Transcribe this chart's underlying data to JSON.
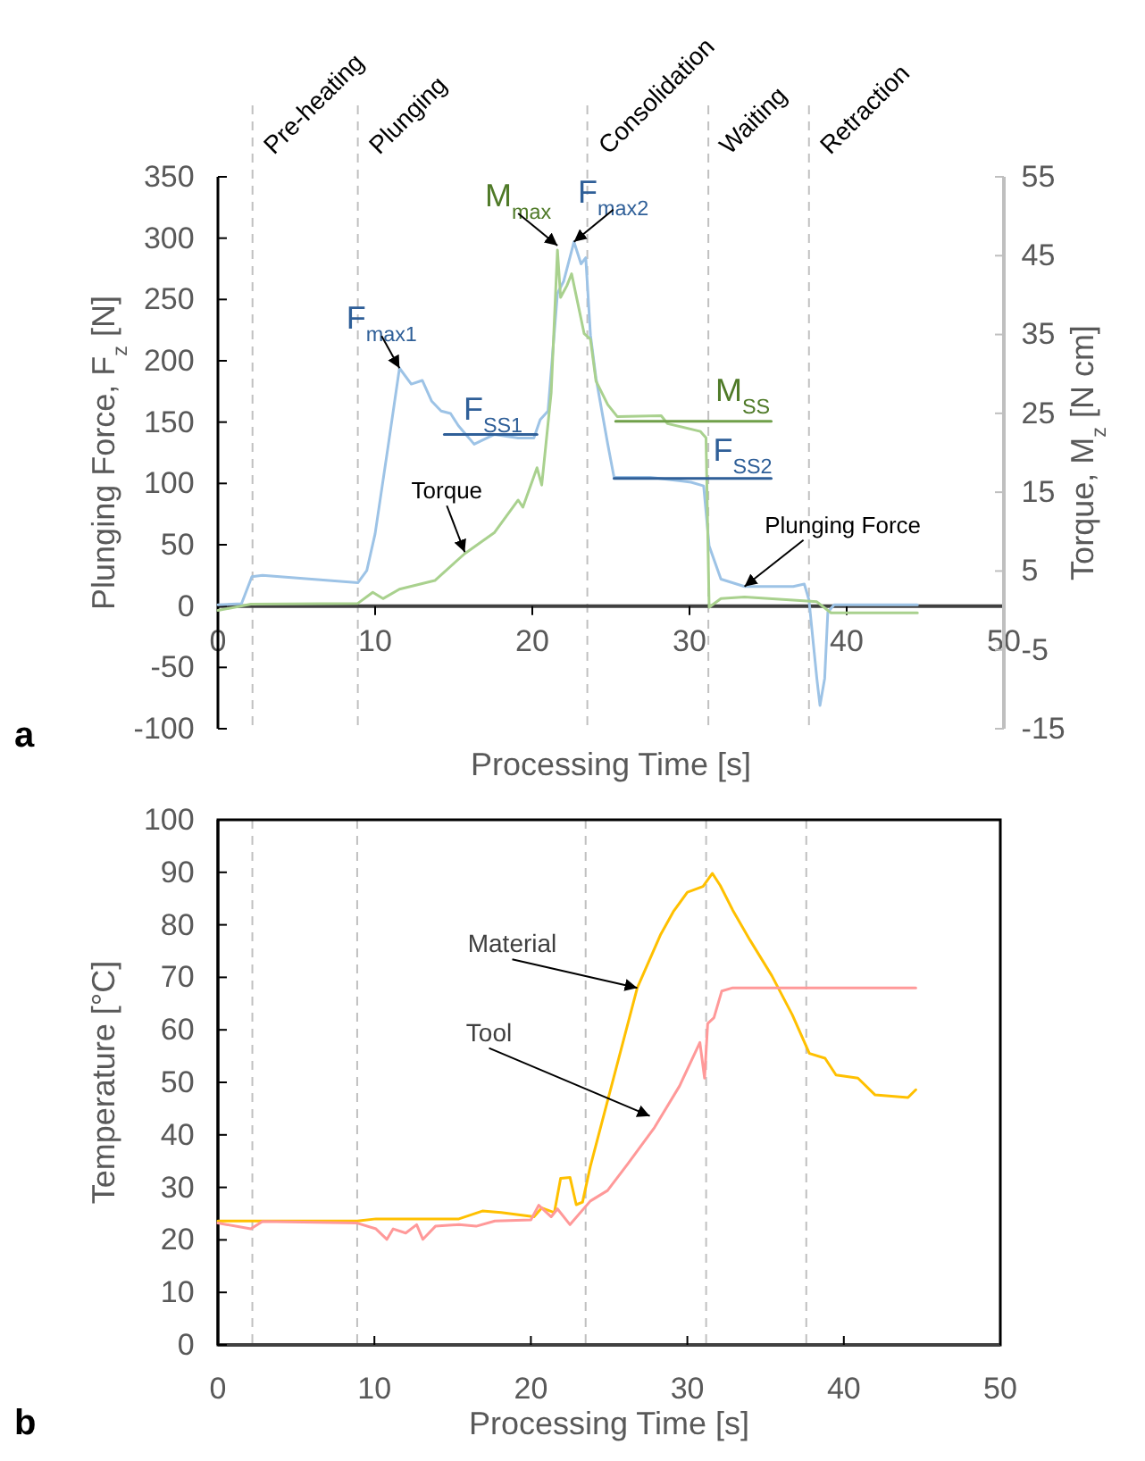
{
  "chart_data": [
    {
      "type": "line",
      "xlabel": "Processing Time [s]",
      "ylabel": "Plunging Force, F$_{z}$ [N]",
      "y2label": "Torque, M$_{z}$ [N cm]",
      "xlim": [
        0,
        50
      ],
      "xticks": [
        0,
        10,
        20,
        30,
        40,
        50
      ],
      "ylim": [
        -100,
        350
      ],
      "yticks": [
        -100,
        -50,
        0,
        50,
        100,
        150,
        200,
        250,
        300,
        350
      ],
      "y2lim": [
        -15,
        55
      ],
      "y2ticks": [
        -15,
        -5,
        5,
        15,
        25,
        35,
        45,
        55
      ],
      "grid": false,
      "marker": "none",
      "line_style": "solid",
      "series": [
        {
          "color": "#9dc3e6",
          "x": [
            0,
            1.5,
            2.16,
            2.84,
            8.9,
            9.47,
            10,
            10.8,
            11.55,
            12.3,
            13,
            13.6,
            14.2,
            14.8,
            15.3,
            16.3,
            17.6,
            19.1,
            20.1,
            20.5,
            21,
            21.6,
            22,
            22.65,
            23.1,
            23.4,
            23.7,
            24.05,
            24.8,
            25.2,
            27.5,
            30.1,
            30.9,
            31.25,
            32,
            33.5,
            36.6,
            37.3,
            37.6,
            38.1,
            38.3,
            38.6,
            38.8,
            39.2,
            44.5
          ],
          "values": [
            1,
            2,
            24,
            25,
            19,
            29,
            59,
            128,
            194,
            181,
            184,
            167,
            159,
            157,
            147,
            132,
            140,
            137,
            137,
            152,
            159,
            255,
            265,
            297,
            279,
            284,
            221,
            186,
            132,
            105,
            105,
            101,
            98,
            49,
            22,
            16,
            16,
            18,
            5,
            -59,
            -81,
            -59,
            -5,
            1,
            1
          ]
        },
        {
          "color": "#a9d18e",
          "axis": "y2",
          "x": [
            0,
            2.1,
            8.9,
            9.85,
            10.5,
            11.55,
            13.8,
            15.7,
            17.6,
            19.1,
            19.4,
            20.3,
            20.6,
            21.2,
            21.6,
            21.8,
            22.2,
            22.5,
            22.9,
            23.3,
            23.7,
            24.05,
            24.8,
            25.4,
            28.2,
            28.6,
            30.7,
            31.05,
            31.25,
            32,
            33.5,
            36.6,
            38.1,
            39,
            44.5
          ],
          "values": [
            0,
            0.8,
            0.9,
            2.3,
            1.5,
            2.7,
            3.8,
            7.2,
            9.9,
            14,
            13.1,
            18.1,
            15.9,
            27.6,
            45.7,
            39.7,
            41.2,
            42.7,
            38.9,
            35.1,
            34.4,
            29.1,
            26.1,
            24.6,
            24.7,
            23.7,
            22.7,
            21.9,
            0.4,
            1.5,
            1.7,
            1.3,
            1.1,
            -0.3,
            -0.3
          ]
        },
        {
          "color": "#2f5f98",
          "x": [
            14.4,
            20.3
          ],
          "values": [
            140,
            140
          ]
        },
        {
          "color": "#2f5f98",
          "x": [
            25.2,
            35.2
          ],
          "values": [
            104,
            104
          ]
        },
        {
          "color": "#70a04a",
          "axis": "y2",
          "x": [
            25.3,
            35.2
          ],
          "values": [
            24,
            24
          ]
        }
      ],
      "ref_lines": [
        {
          "axis": "x",
          "value": 2.2,
          "color": "#c0c0c0",
          "line_style": "dashed",
          "label": "Pre-heating"
        },
        {
          "axis": "x",
          "value": 8.9,
          "color": "#c0c0c0",
          "line_style": "dashed",
          "label": "Plunging"
        },
        {
          "axis": "x",
          "value": 23.5,
          "color": "#c0c0c0",
          "line_style": "dashed",
          "label": "Consolidation"
        },
        {
          "axis": "x",
          "value": 31.2,
          "color": "#c0c0c0",
          "line_style": "dashed",
          "label": "Waiting"
        },
        {
          "axis": "x",
          "value": 37.6,
          "color": "#c0c0c0",
          "line_style": "dashed",
          "label": "Retraction"
        }
      ],
      "annotations": [
        {
          "text": "F$_{max1}$",
          "x": 11.55,
          "y": 194
        },
        {
          "text": "M$_{max}$",
          "x": 21.6,
          "y": 294
        },
        {
          "text": "F$_{max2}$",
          "x": 22.65,
          "y": 297
        },
        {
          "text": "F$_{SS1}$",
          "x": 17.5,
          "y": 140
        },
        {
          "text": "M$_{SS}$",
          "x": 35.2,
          "y": 153
        },
        {
          "text": "F$_{SS2}$",
          "x": 35.2,
          "y": 104
        },
        {
          "text": "Torque",
          "x": 15.7,
          "y": 44
        },
        {
          "text": "Plunging Force",
          "x": 33.5,
          "y": 16
        },
        "a"
      ]
    },
    {
      "type": "line",
      "xlabel": "Processing Time [s]",
      "ylabel": "Temperature [°C]",
      "xlim": [
        0,
        50
      ],
      "xticks": [
        0,
        10,
        20,
        30,
        40,
        50
      ],
      "ylim": [
        0,
        100
      ],
      "yticks": [
        0,
        10,
        20,
        30,
        40,
        50,
        60,
        70,
        80,
        90,
        100
      ],
      "grid": false,
      "marker": "none",
      "line_style": "solid",
      "series": [
        {
          "color": "#ffc000",
          "x": [
            0,
            8.9,
            10.1,
            15.4,
            16.9,
            18.1,
            20.2,
            20.7,
            21.5,
            21.9,
            22.5,
            22.9,
            23.3,
            23.8,
            25.3,
            26.8,
            28.3,
            29.1,
            30,
            31,
            31.6,
            32.1,
            32.9,
            34,
            35.4,
            36.7,
            37.8,
            38.8,
            39.5,
            40.9,
            42,
            44.1,
            44.6
          ],
          "values": [
            23.6,
            23.6,
            24,
            24,
            25.5,
            25.2,
            24.4,
            26.1,
            25.2,
            31.7,
            31.9,
            26.7,
            27.2,
            34,
            51,
            68,
            78.2,
            82.5,
            86.2,
            87.3,
            89.8,
            87.5,
            82.8,
            77.1,
            70.3,
            62.9,
            55.5,
            54.6,
            51.4,
            50.8,
            47.6,
            47.1,
            48.6
          ]
        },
        {
          "color": "#ff9999",
          "x": [
            0,
            2.1,
            2.85,
            8.9,
            10.1,
            10.8,
            11.2,
            12,
            12.7,
            13.1,
            13.9,
            15.4,
            16.5,
            17.7,
            20,
            20.5,
            21.3,
            21.7,
            22.5,
            23.8,
            24.9,
            26.2,
            27.9,
            29.5,
            30.8,
            31.1,
            31.3,
            31.7,
            32.2,
            32.9,
            44.6
          ],
          "values": [
            23.2,
            22.1,
            23.5,
            23.2,
            22.1,
            20.1,
            22.1,
            21.3,
            22.9,
            20.1,
            22.6,
            22.9,
            22.6,
            23.6,
            23.8,
            26.6,
            24.4,
            25.9,
            22.9,
            27.4,
            29.4,
            34.5,
            41.4,
            49.3,
            57.6,
            50.8,
            61.2,
            62.3,
            67.4,
            68,
            68
          ]
        }
      ],
      "ref_lines": [
        {
          "axis": "x",
          "value": 2.2,
          "color": "#c0c0c0",
          "line_style": "dashed"
        },
        {
          "axis": "x",
          "value": 8.9,
          "color": "#c0c0c0",
          "line_style": "dashed"
        },
        {
          "axis": "x",
          "value": 23.5,
          "color": "#c0c0c0",
          "line_style": "dashed"
        },
        {
          "axis": "x",
          "value": 31.2,
          "color": "#c0c0c0",
          "line_style": "dashed"
        },
        {
          "axis": "x",
          "value": 37.6,
          "color": "#c0c0c0",
          "line_style": "dashed"
        }
      ],
      "annotations": [
        {
          "text": "Material",
          "x": 26.8,
          "y": 68
        },
        {
          "text": "Tool",
          "x": 27.6,
          "y": 43.6
        },
        "b"
      ]
    }
  ]
}
